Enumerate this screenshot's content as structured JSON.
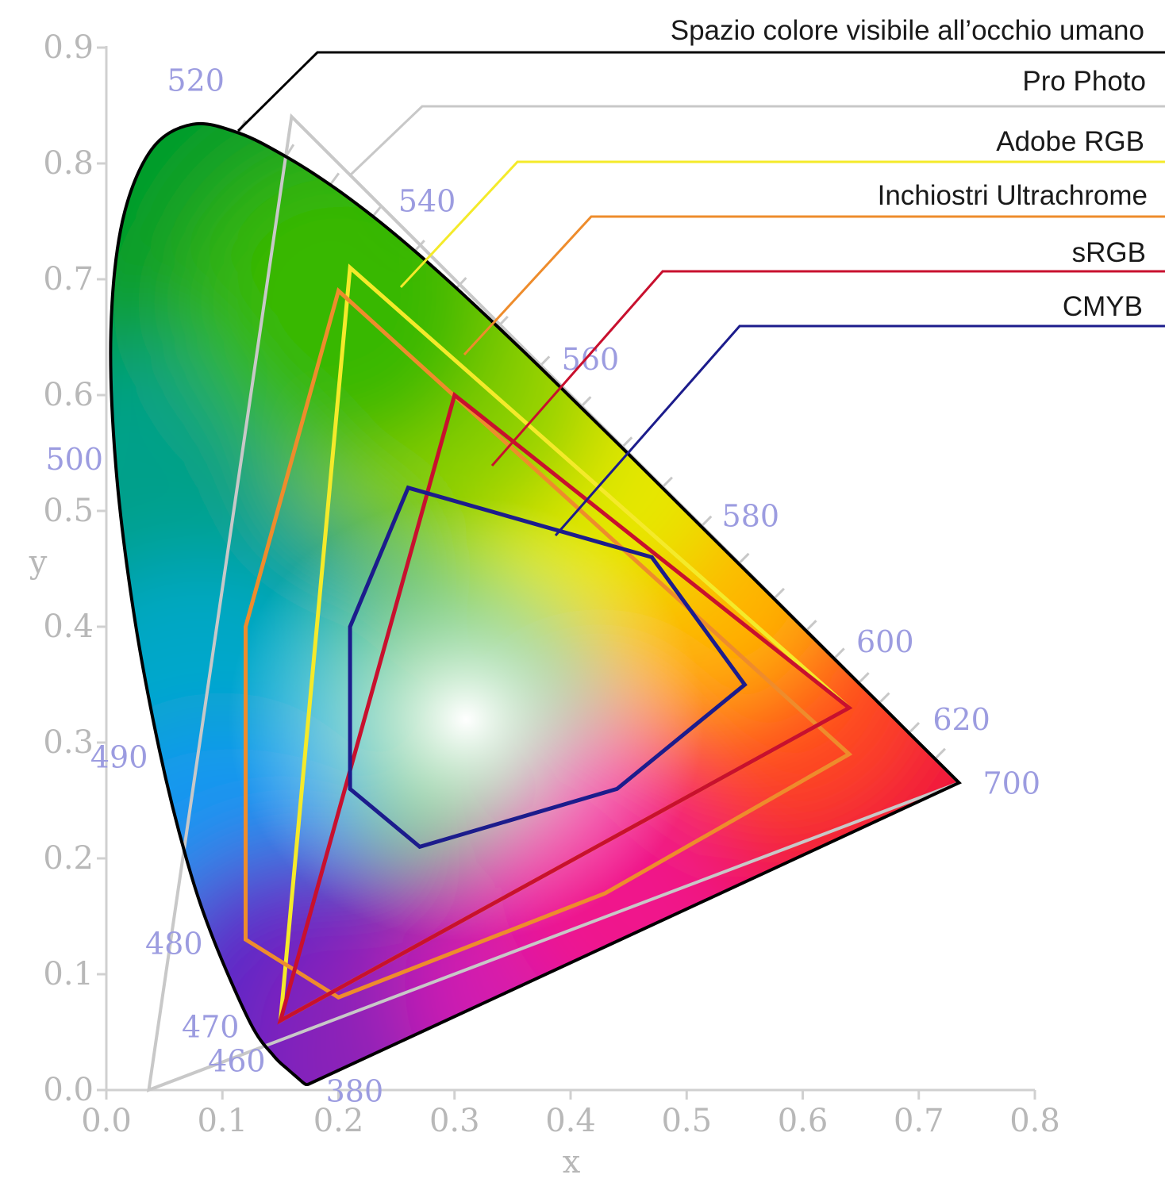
{
  "chart_data": {
    "type": "scatter",
    "xlabel": "x",
    "ylabel": "y",
    "xlim": [
      0.0,
      0.8
    ],
    "ylim": [
      0.0,
      0.9
    ],
    "x_ticks": [
      "0.0",
      "0.1",
      "0.2",
      "0.3",
      "0.4",
      "0.5",
      "0.6",
      "0.7",
      "0.8"
    ],
    "y_ticks": [
      "0.0",
      "0.1",
      "0.2",
      "0.3",
      "0.4",
      "0.5",
      "0.6",
      "0.7",
      "0.8",
      "0.9"
    ],
    "grid": false,
    "legend_position": "top-right",
    "spectral_locus": {
      "name": "Spazio colore visibile all’occhio umano",
      "color": "#000000",
      "points": [
        {
          "x": 0.1741,
          "y": 0.005
        },
        {
          "x": 0.1738,
          "y": 0.0049
        },
        {
          "x": 0.1733,
          "y": 0.0048
        },
        {
          "x": 0.1726,
          "y": 0.0048
        },
        {
          "x": 0.1714,
          "y": 0.0051
        },
        {
          "x": 0.1689,
          "y": 0.0069
        },
        {
          "x": 0.1644,
          "y": 0.0109
        },
        {
          "x": 0.1566,
          "y": 0.0177
        },
        {
          "x": 0.144,
          "y": 0.0297
        },
        {
          "x": 0.1241,
          "y": 0.0578
        },
        {
          "x": 0.0913,
          "y": 0.1327
        },
        {
          "x": 0.0687,
          "y": 0.2007
        },
        {
          "x": 0.0454,
          "y": 0.295
        },
        {
          "x": 0.0235,
          "y": 0.4127
        },
        {
          "x": 0.0082,
          "y": 0.5384
        },
        {
          "x": 0.0039,
          "y": 0.6548
        },
        {
          "x": 0.0139,
          "y": 0.7502
        },
        {
          "x": 0.0389,
          "y": 0.812
        },
        {
          "x": 0.0743,
          "y": 0.8338
        },
        {
          "x": 0.1142,
          "y": 0.8262
        },
        {
          "x": 0.1547,
          "y": 0.8059
        },
        {
          "x": 0.1929,
          "y": 0.7816
        },
        {
          "x": 0.2296,
          "y": 0.7543
        },
        {
          "x": 0.2658,
          "y": 0.7243
        },
        {
          "x": 0.3016,
          "y": 0.6923
        },
        {
          "x": 0.3373,
          "y": 0.6589
        },
        {
          "x": 0.3731,
          "y": 0.6245
        },
        {
          "x": 0.4087,
          "y": 0.5896
        },
        {
          "x": 0.4441,
          "y": 0.5547
        },
        {
          "x": 0.4788,
          "y": 0.5202
        },
        {
          "x": 0.5125,
          "y": 0.4866
        },
        {
          "x": 0.5448,
          "y": 0.4544
        },
        {
          "x": 0.5752,
          "y": 0.4242
        },
        {
          "x": 0.6029,
          "y": 0.3965
        },
        {
          "x": 0.627,
          "y": 0.3725
        },
        {
          "x": 0.6482,
          "y": 0.3514
        },
        {
          "x": 0.6658,
          "y": 0.334
        },
        {
          "x": 0.6915,
          "y": 0.3083
        },
        {
          "x": 0.714,
          "y": 0.2859
        },
        {
          "x": 0.7347,
          "y": 0.2653
        }
      ],
      "wavelength_labels": [
        {
          "nm": "380",
          "x": 0.1741,
          "y": 0.005
        },
        {
          "nm": "460",
          "x": 0.144,
          "y": 0.0297
        },
        {
          "nm": "470",
          "x": 0.1241,
          "y": 0.0578
        },
        {
          "nm": "480",
          "x": 0.0913,
          "y": 0.1327
        },
        {
          "nm": "490",
          "x": 0.0454,
          "y": 0.295
        },
        {
          "nm": "500",
          "x": 0.0082,
          "y": 0.5384
        },
        {
          "nm": "520",
          "x": 0.0743,
          "y": 0.8338
        },
        {
          "nm": "540",
          "x": 0.2296,
          "y": 0.7543
        },
        {
          "nm": "560",
          "x": 0.3731,
          "y": 0.6245
        },
        {
          "nm": "580",
          "x": 0.5125,
          "y": 0.4866
        },
        {
          "nm": "600",
          "x": 0.627,
          "y": 0.3725
        },
        {
          "nm": "620",
          "x": 0.6915,
          "y": 0.3083
        },
        {
          "nm": "700",
          "x": 0.7347,
          "y": 0.2653
        }
      ]
    },
    "gamuts": [
      {
        "name": "Pro Photo",
        "color": "#c8c8c8",
        "points": [
          {
            "x": 0.7347,
            "y": 0.2653
          },
          {
            "x": 0.1596,
            "y": 0.8404
          },
          {
            "x": 0.0366,
            "y": 0.0001
          }
        ]
      },
      {
        "name": "Adobe RGB",
        "color": "#f4ea2a",
        "points": [
          {
            "x": 0.64,
            "y": 0.33
          },
          {
            "x": 0.21,
            "y": 0.71
          },
          {
            "x": 0.15,
            "y": 0.06
          }
        ]
      },
      {
        "name": "Inchiostri Ultrachrome",
        "color": "#ee8c2c",
        "points": [
          {
            "x": 0.64,
            "y": 0.29
          },
          {
            "x": 0.2,
            "y": 0.69
          },
          {
            "x": 0.12,
            "y": 0.4
          },
          {
            "x": 0.12,
            "y": 0.13
          },
          {
            "x": 0.2,
            "y": 0.08
          },
          {
            "x": 0.43,
            "y": 0.17
          }
        ]
      },
      {
        "name": "sRGB",
        "color": "#c8102e",
        "points": [
          {
            "x": 0.64,
            "y": 0.33
          },
          {
            "x": 0.3,
            "y": 0.6
          },
          {
            "x": 0.15,
            "y": 0.06
          }
        ]
      },
      {
        "name": "CMYB",
        "color": "#1c1c8c",
        "points": [
          {
            "x": 0.26,
            "y": 0.52
          },
          {
            "x": 0.47,
            "y": 0.46
          },
          {
            "x": 0.55,
            "y": 0.35
          },
          {
            "x": 0.44,
            "y": 0.26
          },
          {
            "x": 0.27,
            "y": 0.21
          },
          {
            "x": 0.21,
            "y": 0.26
          },
          {
            "x": 0.21,
            "y": 0.4
          }
        ]
      }
    ]
  }
}
